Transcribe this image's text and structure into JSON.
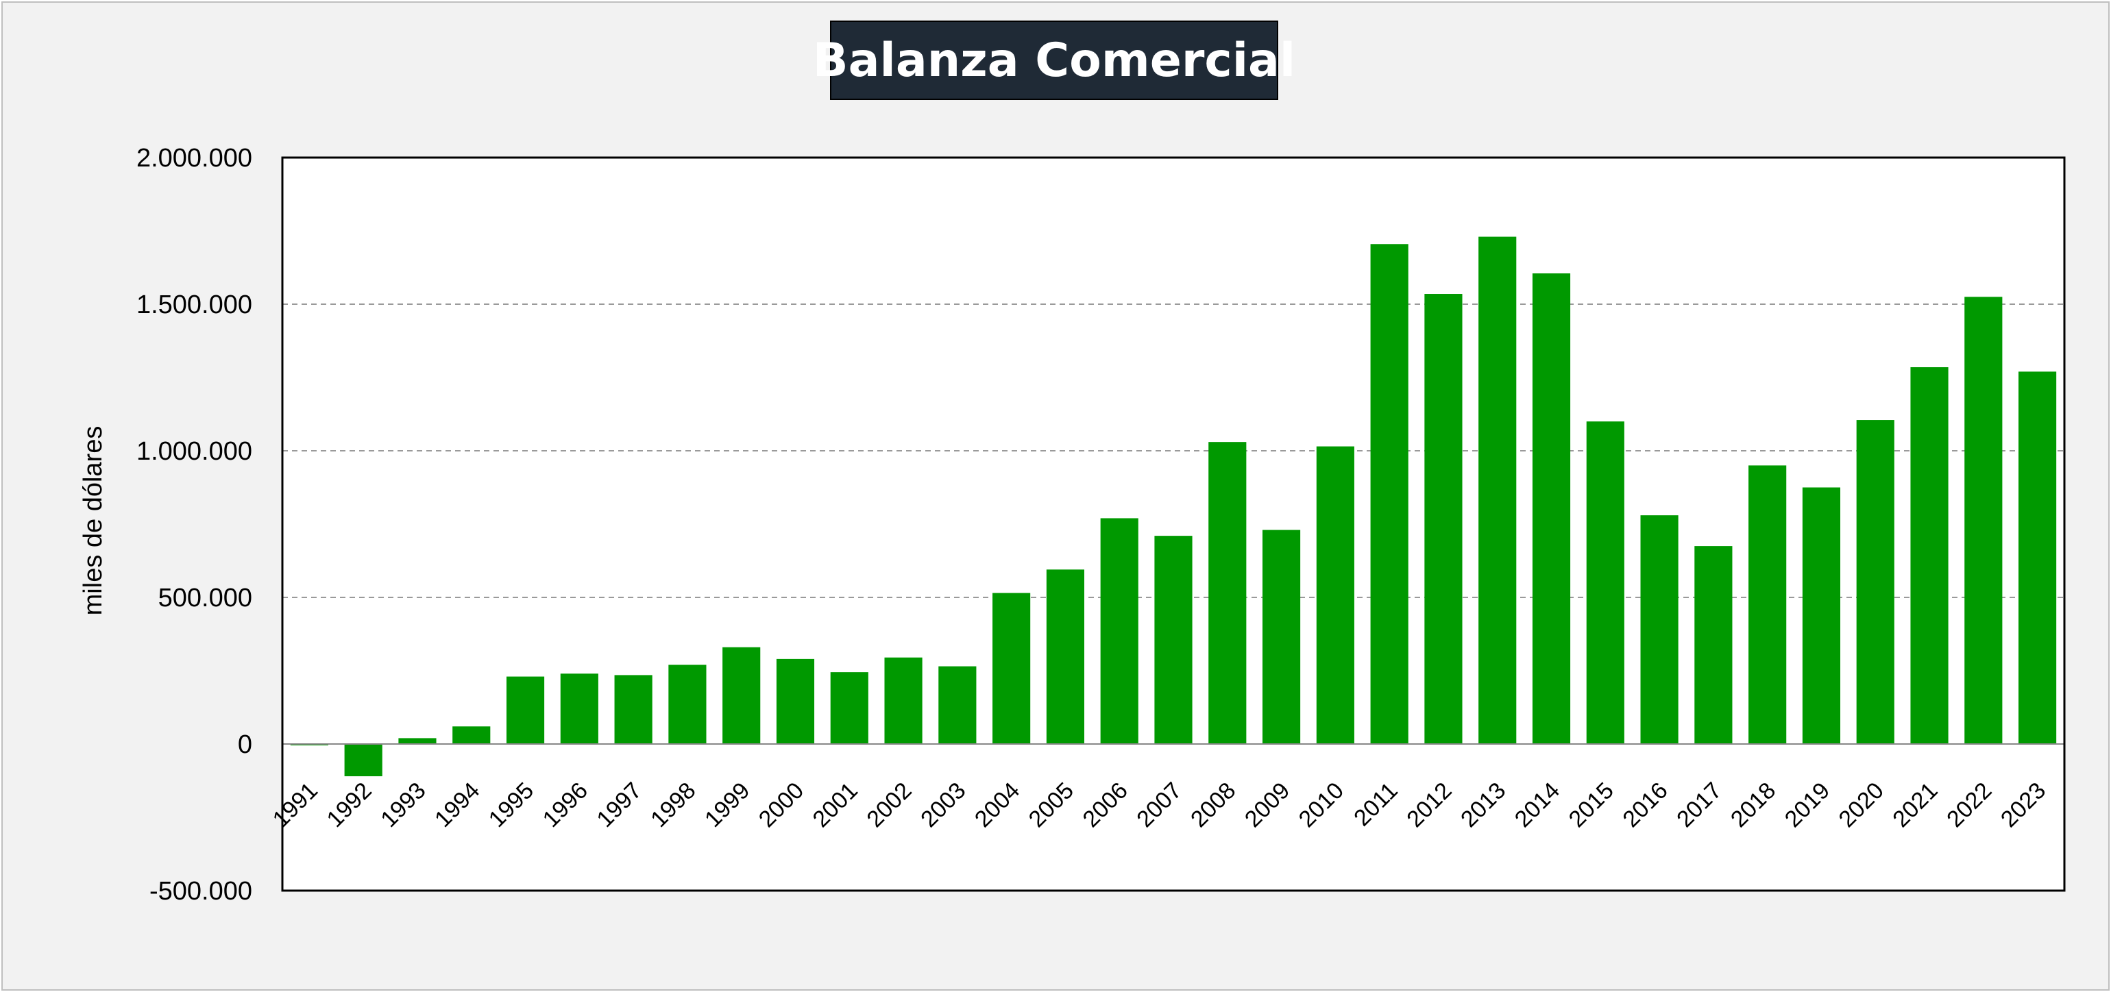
{
  "chart_data": {
    "type": "bar",
    "title": "Balanza Comercial",
    "ylabel": "miles de dólares",
    "xlabel": "",
    "ylim": [
      -500000,
      2000000
    ],
    "yticks": [
      -500000,
      0,
      500000,
      1000000,
      1500000,
      2000000
    ],
    "ytick_labels": [
      "-500.000",
      "0",
      "500.000",
      "1.000.000",
      "1.500.000",
      "2.000.000"
    ],
    "grid": true,
    "legend": "none",
    "bar_color": "#009900",
    "categories": [
      "1991",
      "1992",
      "1993",
      "1994",
      "1995",
      "1996",
      "1997",
      "1998",
      "1999",
      "2000",
      "2001",
      "2002",
      "2003",
      "2004",
      "2005",
      "2006",
      "2007",
      "2008",
      "2009",
      "2010",
      "2011",
      "2012",
      "2013",
      "2014",
      "2015",
      "2016",
      "2017",
      "2018",
      "2019",
      "2020",
      "2021",
      "2022",
      "2023"
    ],
    "values": [
      -3000,
      -110000,
      20000,
      60000,
      230000,
      240000,
      235000,
      270000,
      330000,
      290000,
      245000,
      295000,
      265000,
      515000,
      595000,
      770000,
      710000,
      1030000,
      730000,
      1015000,
      1705000,
      1535000,
      1730000,
      1605000,
      1100000,
      780000,
      675000,
      950000,
      875000,
      1105000,
      1285000,
      1525000,
      1270000
    ]
  }
}
